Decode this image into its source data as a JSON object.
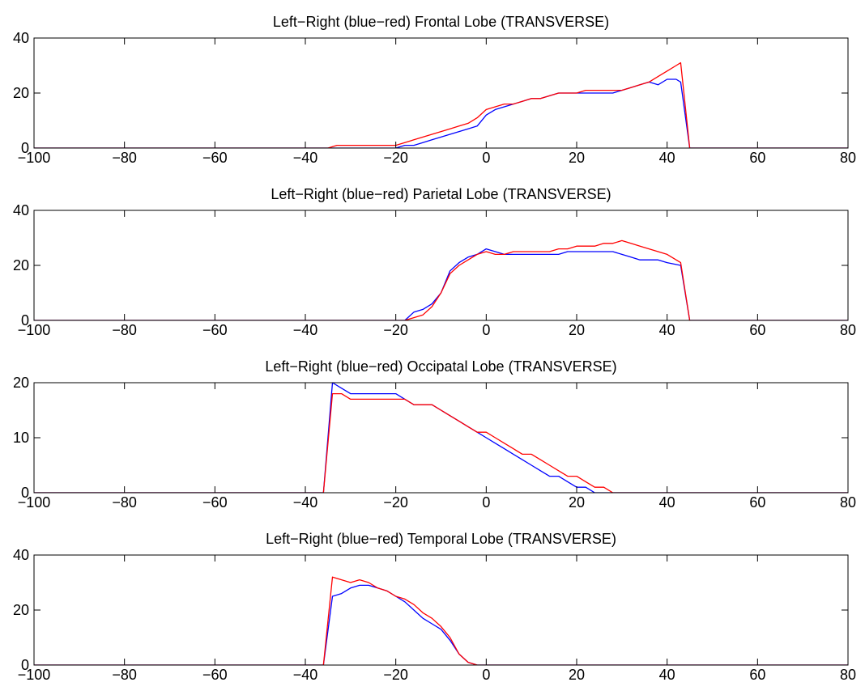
{
  "series_colors": {
    "left": "#0000ff",
    "right": "#ff0000"
  },
  "chart_data": [
    {
      "type": "line",
      "title": "Left−Right (blue−red) Frontal Lobe (TRANSVERSE)",
      "xlim": [
        -100,
        80
      ],
      "ylim": [
        0,
        40
      ],
      "xticks": [
        -100,
        -80,
        -60,
        -40,
        -20,
        0,
        20,
        40,
        60,
        80
      ],
      "xtick_labels": [
        "−100",
        "−80",
        "−60",
        "−40",
        "−20",
        "0",
        "20",
        "40",
        "60",
        "80"
      ],
      "yticks": [
        0,
        20,
        40
      ],
      "ytick_labels": [
        "0",
        "20",
        "40"
      ],
      "grid": false,
      "series": [
        {
          "color": "#0000ff",
          "x": [
            -100,
            -35,
            -33,
            -20,
            -18,
            -16,
            -14,
            -12,
            -10,
            -8,
            -6,
            -4,
            -2,
            0,
            2,
            4,
            6,
            8,
            10,
            12,
            14,
            16,
            18,
            20,
            22,
            24,
            26,
            28,
            30,
            32,
            34,
            36,
            38,
            40,
            42,
            43,
            45,
            80
          ],
          "y": [
            0,
            0,
            0,
            0,
            1,
            1,
            2,
            3,
            4,
            5,
            6,
            7,
            8,
            12,
            14,
            15,
            16,
            17,
            18,
            18,
            19,
            20,
            20,
            20,
            20,
            20,
            20,
            20,
            21,
            22,
            23,
            24,
            23,
            25,
            25,
            24,
            0,
            0
          ]
        },
        {
          "color": "#ff0000",
          "x": [
            -100,
            -35,
            -33,
            -20,
            -18,
            -16,
            -14,
            -12,
            -10,
            -8,
            -6,
            -4,
            -2,
            0,
            2,
            4,
            6,
            8,
            10,
            12,
            14,
            16,
            18,
            20,
            22,
            24,
            26,
            28,
            30,
            32,
            34,
            36,
            38,
            40,
            42,
            43,
            45,
            80
          ],
          "y": [
            0,
            0,
            1,
            1,
            2,
            3,
            4,
            5,
            6,
            7,
            8,
            9,
            11,
            14,
            15,
            16,
            16,
            17,
            18,
            18,
            19,
            20,
            20,
            20,
            21,
            21,
            21,
            21,
            21,
            22,
            23,
            24,
            26,
            28,
            30,
            31,
            0,
            0
          ]
        }
      ]
    },
    {
      "type": "line",
      "title": "Left−Right (blue−red) Parietal Lobe (TRANSVERSE)",
      "xlim": [
        -100,
        80
      ],
      "ylim": [
        0,
        40
      ],
      "xticks": [
        -100,
        -80,
        -60,
        -40,
        -20,
        0,
        20,
        40,
        60,
        80
      ],
      "xtick_labels": [
        "−100",
        "−80",
        "−60",
        "−40",
        "−20",
        "0",
        "20",
        "40",
        "60",
        "80"
      ],
      "yticks": [
        0,
        20,
        40
      ],
      "ytick_labels": [
        "0",
        "20",
        "40"
      ],
      "grid": false,
      "series": [
        {
          "color": "#0000ff",
          "x": [
            -100,
            -18,
            -16,
            -14,
            -12,
            -10,
            -8,
            -6,
            -4,
            -2,
            0,
            2,
            4,
            6,
            8,
            10,
            12,
            14,
            16,
            18,
            20,
            22,
            24,
            26,
            28,
            30,
            32,
            34,
            36,
            38,
            40,
            43,
            45,
            80
          ],
          "y": [
            0,
            0,
            3,
            4,
            6,
            10,
            18,
            21,
            23,
            24,
            26,
            25,
            24,
            24,
            24,
            24,
            24,
            24,
            24,
            25,
            25,
            25,
            25,
            25,
            25,
            24,
            23,
            22,
            22,
            22,
            21,
            20,
            0,
            0
          ]
        },
        {
          "color": "#ff0000",
          "x": [
            -100,
            -20,
            -18,
            -16,
            -14,
            -12,
            -10,
            -8,
            -6,
            -4,
            -2,
            0,
            2,
            4,
            6,
            8,
            10,
            12,
            14,
            16,
            18,
            20,
            22,
            24,
            26,
            28,
            30,
            32,
            34,
            36,
            38,
            40,
            43,
            45,
            80
          ],
          "y": [
            0,
            0,
            0,
            1,
            2,
            5,
            10,
            17,
            20,
            22,
            24,
            25,
            24,
            24,
            25,
            25,
            25,
            25,
            25,
            26,
            26,
            27,
            27,
            27,
            28,
            28,
            29,
            28,
            27,
            26,
            25,
            24,
            21,
            0,
            0
          ]
        }
      ]
    },
    {
      "type": "line",
      "title": "Left−Right (blue−red) Occipatal Lobe (TRANSVERSE)",
      "xlim": [
        -100,
        80
      ],
      "ylim": [
        0,
        20
      ],
      "xticks": [
        -100,
        -80,
        -60,
        -40,
        -20,
        0,
        20,
        40,
        60,
        80
      ],
      "xtick_labels": [
        "−100",
        "−80",
        "−60",
        "−40",
        "−20",
        "0",
        "20",
        "40",
        "60",
        "80"
      ],
      "yticks": [
        0,
        10,
        20
      ],
      "ytick_labels": [
        "0",
        "10",
        "20"
      ],
      "grid": false,
      "series": [
        {
          "color": "#0000ff",
          "x": [
            -100,
            -36,
            -34,
            -32,
            -30,
            -28,
            -24,
            -20,
            -18,
            -16,
            -14,
            -12,
            -10,
            -8,
            -6,
            -4,
            -2,
            0,
            2,
            4,
            6,
            8,
            10,
            12,
            14,
            16,
            18,
            20,
            22,
            24,
            26,
            80
          ],
          "y": [
            0,
            0,
            20,
            19,
            18,
            18,
            18,
            18,
            17,
            16,
            16,
            16,
            15,
            14,
            13,
            12,
            11,
            10,
            9,
            8,
            7,
            6,
            5,
            4,
            3,
            3,
            2,
            1,
            1,
            0,
            0,
            0
          ]
        },
        {
          "color": "#ff0000",
          "x": [
            -100,
            -36,
            -34,
            -32,
            -30,
            -28,
            -24,
            -20,
            -18,
            -16,
            -14,
            -12,
            -10,
            -8,
            -6,
            -4,
            -2,
            0,
            2,
            4,
            6,
            8,
            10,
            12,
            14,
            16,
            18,
            20,
            22,
            24,
            26,
            28,
            30,
            80
          ],
          "y": [
            0,
            0,
            18,
            18,
            17,
            17,
            17,
            17,
            17,
            16,
            16,
            16,
            15,
            14,
            13,
            12,
            11,
            11,
            10,
            9,
            8,
            7,
            7,
            6,
            5,
            4,
            3,
            3,
            2,
            1,
            1,
            0,
            0,
            0
          ]
        }
      ]
    },
    {
      "type": "line",
      "title": "Left−Right (blue−red) Temporal Lobe (TRANSVERSE)",
      "xlim": [
        -100,
        80
      ],
      "ylim": [
        0,
        40
      ],
      "xticks": [
        -100,
        -80,
        -60,
        -40,
        -20,
        0,
        20,
        40,
        60,
        80
      ],
      "xtick_labels": [
        "−100",
        "−80",
        "−60",
        "−40",
        "−20",
        "0",
        "20",
        "40",
        "60",
        "80"
      ],
      "yticks": [
        0,
        20,
        40
      ],
      "ytick_labels": [
        "0",
        "20",
        "40"
      ],
      "grid": false,
      "series": [
        {
          "color": "#0000ff",
          "x": [
            -100,
            -36,
            -34,
            -32,
            -30,
            -28,
            -26,
            -24,
            -22,
            -20,
            -18,
            -16,
            -14,
            -12,
            -10,
            -8,
            -6,
            -4,
            -2,
            80
          ],
          "y": [
            0,
            0,
            25,
            26,
            28,
            29,
            29,
            28,
            27,
            25,
            23,
            20,
            17,
            15,
            13,
            9,
            4,
            1,
            0,
            0
          ]
        },
        {
          "color": "#ff0000",
          "x": [
            -100,
            -36,
            -34,
            -32,
            -30,
            -28,
            -26,
            -24,
            -22,
            -20,
            -18,
            -16,
            -14,
            -12,
            -10,
            -8,
            -6,
            -4,
            -2,
            80
          ],
          "y": [
            0,
            0,
            32,
            31,
            30,
            31,
            30,
            28,
            27,
            25,
            24,
            22,
            19,
            17,
            14,
            10,
            4,
            1,
            0,
            0
          ]
        }
      ]
    }
  ]
}
